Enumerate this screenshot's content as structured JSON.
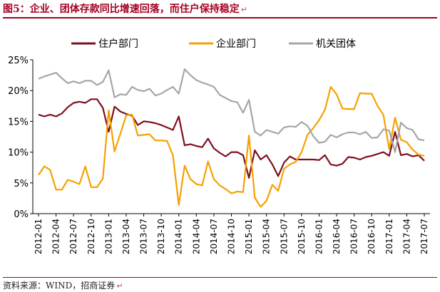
{
  "header": {
    "title": "图5：企业、团体存款同比增速回落，而住户保持稳定",
    "para_mark": "↵"
  },
  "footer": {
    "source": "资料来源：WIND，招商证券",
    "para_mark": "↵"
  },
  "chart_data": {
    "type": "line",
    "legend_position": "top",
    "grid": false,
    "ylim": [
      0,
      25
    ],
    "yticks": [
      "0%",
      "5%",
      "10%",
      "15%",
      "20%",
      "25%"
    ],
    "xticks": [
      "2012-01",
      "2012-04",
      "2012-07",
      "2012-10",
      "2013-01",
      "2013-04",
      "2013-07",
      "2013-10",
      "2014-01",
      "2014-04",
      "2014-07",
      "2014-10",
      "2015-01",
      "2015-04",
      "2015-07",
      "2015-10",
      "2016-01",
      "2016-04",
      "2016-07",
      "2016-10",
      "2017-01",
      "2017-04",
      "2017-07"
    ],
    "x": [
      "2012-01",
      "2012-02",
      "2012-03",
      "2012-04",
      "2012-05",
      "2012-06",
      "2012-07",
      "2012-08",
      "2012-09",
      "2012-10",
      "2012-11",
      "2012-12",
      "2013-01",
      "2013-02",
      "2013-03",
      "2013-04",
      "2013-05",
      "2013-06",
      "2013-07",
      "2013-08",
      "2013-09",
      "2013-10",
      "2013-11",
      "2013-12",
      "2014-01",
      "2014-02",
      "2014-03",
      "2014-04",
      "2014-05",
      "2014-06",
      "2014-07",
      "2014-08",
      "2014-09",
      "2014-10",
      "2014-11",
      "2014-12",
      "2015-01",
      "2015-02",
      "2015-03",
      "2015-04",
      "2015-05",
      "2015-06",
      "2015-07",
      "2015-08",
      "2015-09",
      "2015-10",
      "2015-11",
      "2015-12",
      "2016-01",
      "2016-02",
      "2016-03",
      "2016-04",
      "2016-05",
      "2016-06",
      "2016-07",
      "2016-08",
      "2016-09",
      "2016-10",
      "2016-11",
      "2016-12",
      "2017-01",
      "2017-02",
      "2017-03",
      "2017-04",
      "2017-05",
      "2017-06",
      "2017-07"
    ],
    "series": [
      {
        "name": "住户部门",
        "color": "#7f0f1e",
        "values": [
          16.1,
          15.8,
          16.1,
          15.8,
          16.3,
          17.3,
          18.0,
          18.2,
          18.0,
          18.6,
          18.6,
          17.2,
          13.3,
          17.4,
          16.6,
          16.2,
          15.9,
          14.4,
          15.0,
          14.9,
          14.7,
          14.4,
          14.0,
          13.6,
          15.8,
          11.1,
          11.3,
          11.0,
          10.8,
          12.2,
          10.6,
          9.9,
          9.3,
          10.0,
          10.0,
          9.5,
          5.8,
          10.3,
          8.8,
          9.5,
          8.0,
          6.1,
          8.3,
          9.3,
          8.8,
          8.8,
          8.8,
          8.8,
          8.7,
          9.5,
          8.0,
          7.8,
          8.1,
          9.2,
          9.1,
          8.8,
          9.2,
          9.4,
          9.7,
          10.0,
          9.4,
          13.3,
          9.5,
          9.7,
          9.3,
          9.5,
          8.6
        ]
      },
      {
        "name": "企业部门",
        "color": "#f5a100",
        "values": [
          6.3,
          7.7,
          7.1,
          3.9,
          3.9,
          5.5,
          5.2,
          4.8,
          7.7,
          4.3,
          4.3,
          5.7,
          16.8,
          10.1,
          13.0,
          16.0,
          16.1,
          12.7,
          12.8,
          12.9,
          11.9,
          11.9,
          11.8,
          9.5,
          1.4,
          7.8,
          5.6,
          4.8,
          4.6,
          8.5,
          5.6,
          4.6,
          4.0,
          3.3,
          3.6,
          3.5,
          12.7,
          2.6,
          1.1,
          2.1,
          4.7,
          3.7,
          7.3,
          8.0,
          8.4,
          10.0,
          12.8,
          13.9,
          15.2,
          16.9,
          20.6,
          19.4,
          17.1,
          17.0,
          17.0,
          19.6,
          19.5,
          19.5,
          17.5,
          16.1,
          10.5,
          15.6,
          12.0,
          11.6,
          10.4,
          9.6,
          9.4
        ]
      },
      {
        "name": "机关团体",
        "color": "#a6a6a6",
        "values": [
          21.9,
          22.3,
          22.6,
          22.9,
          22.0,
          21.2,
          21.5,
          21.2,
          21.6,
          21.6,
          20.9,
          21.4,
          23.3,
          18.9,
          19.4,
          19.3,
          20.6,
          20.1,
          19.9,
          20.3,
          19.2,
          19.5,
          20.1,
          20.6,
          19.5,
          23.5,
          22.5,
          21.7,
          21.3,
          21.0,
          20.6,
          19.3,
          18.8,
          18.3,
          18.1,
          16.4,
          18.5,
          13.3,
          12.7,
          13.6,
          13.3,
          13.0,
          14.0,
          14.2,
          14.1,
          14.9,
          14.3,
          12.6,
          11.5,
          11.7,
          12.8,
          12.4,
          12.9,
          13.2,
          13.2,
          12.9,
          13.3,
          12.3,
          12.4,
          13.7,
          13.5,
          10.0,
          14.8,
          13.9,
          13.6,
          12.1,
          11.9
        ]
      }
    ]
  }
}
